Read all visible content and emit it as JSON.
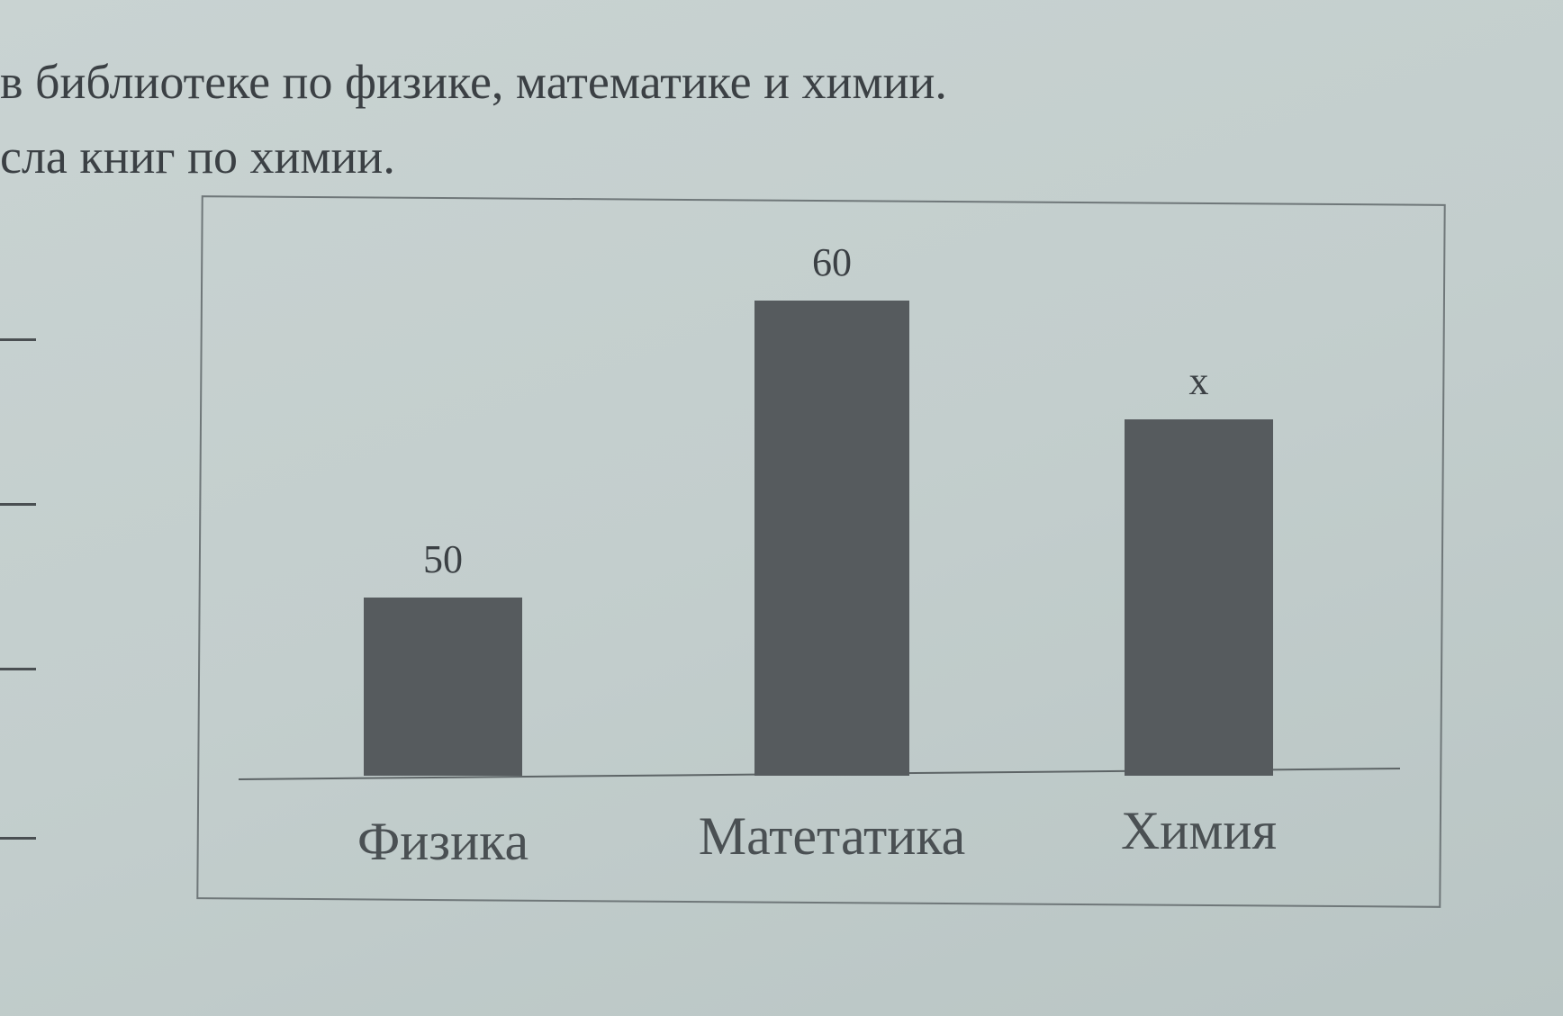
{
  "text": {
    "line1": "в библиотеке по физике, математике и химии.",
    "line2": "сла книг по химии."
  },
  "chart_data": {
    "type": "bar",
    "categories": [
      "Физика",
      "Матетатика",
      "Химия"
    ],
    "values": [
      50,
      60,
      56
    ],
    "data_labels": [
      "50",
      "60",
      "x"
    ],
    "title": "",
    "xlabel": "",
    "ylabel": "",
    "ylim": [
      44,
      61
    ],
    "grid": false,
    "legend": "none",
    "bar_color": "#565b5e"
  }
}
